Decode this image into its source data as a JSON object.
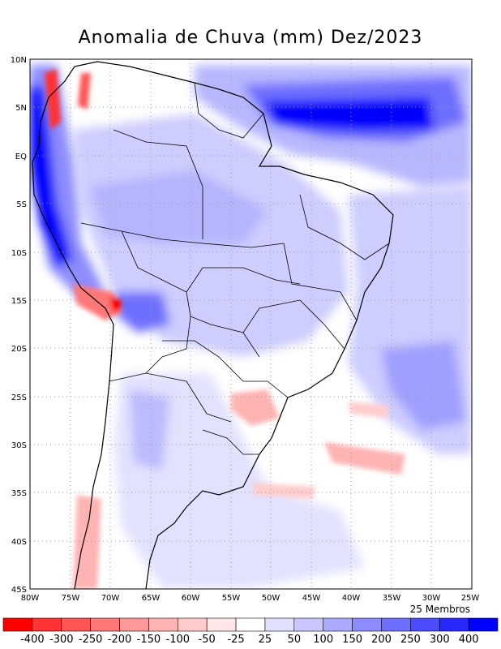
{
  "title": "Anomalia de Chuva (mm) Dez/2023",
  "members_label": "25 Membros",
  "lat_labels": [
    "10N",
    "5N",
    "EQ",
    "5S",
    "10S",
    "15S",
    "20S",
    "25S",
    "30S",
    "35S",
    "40S",
    "45S"
  ],
  "lon_labels": [
    "80W",
    "75W",
    "70W",
    "65W",
    "60W",
    "55W",
    "50W",
    "45W",
    "40W",
    "35W",
    "30W",
    "25W"
  ],
  "colorbar": {
    "labels": [
      "-400",
      "-300",
      "-250",
      "-200",
      "-150",
      "-100",
      "-50",
      "-25",
      "25",
      "50",
      "100",
      "150",
      "200",
      "250",
      "300",
      "400"
    ],
    "colors": [
      "#ff0000",
      "#ff3333",
      "#ff5555",
      "#ff7777",
      "#ff9999",
      "#ffb3b3",
      "#ffcccc",
      "#ffe6e6",
      "#ffffff",
      "#e0e0ff",
      "#c8c8ff",
      "#aaaaff",
      "#8c8cff",
      "#6e6eff",
      "#4b4bff",
      "#2828ff",
      "#0000ff"
    ]
  }
}
